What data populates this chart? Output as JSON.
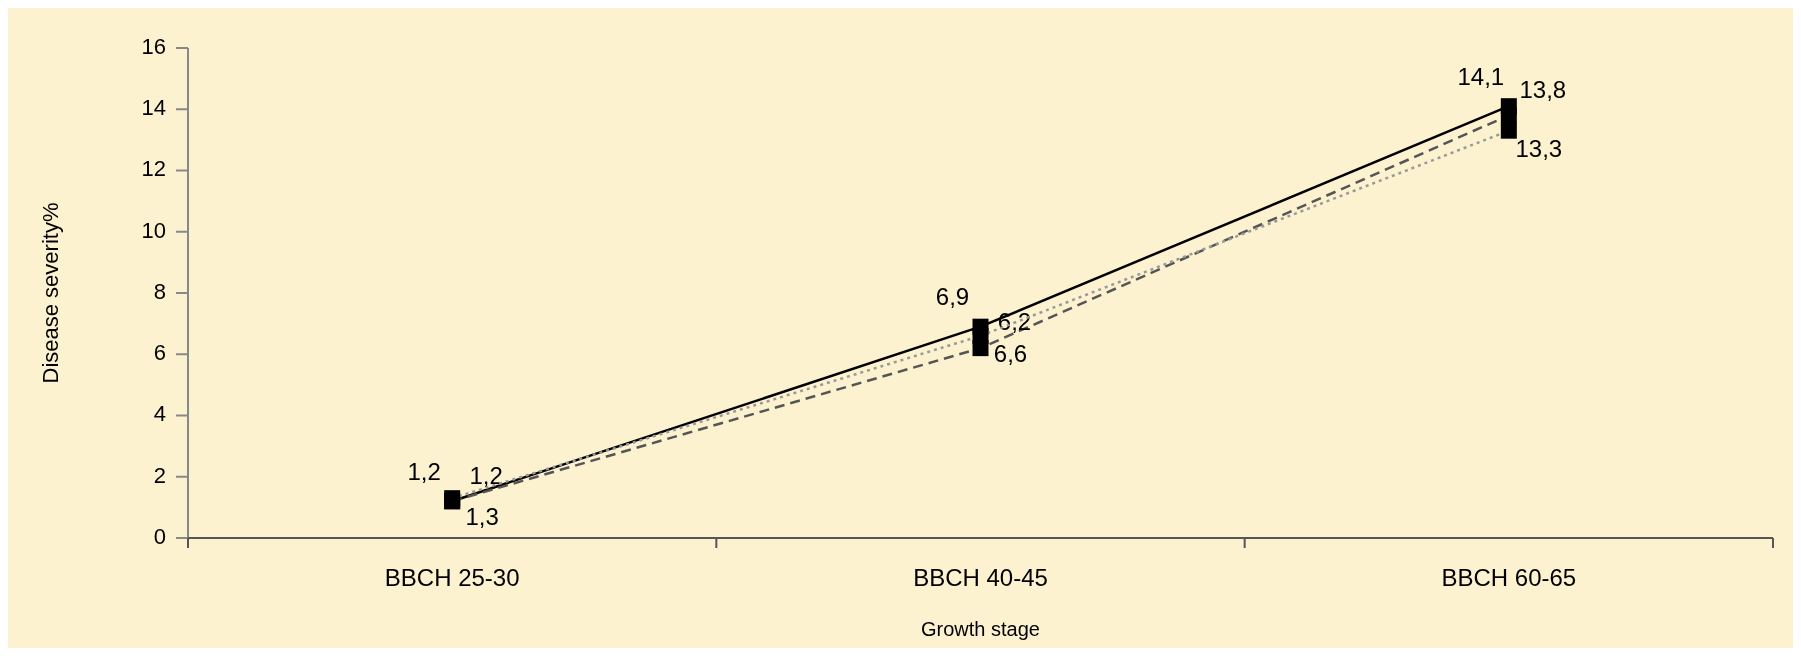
{
  "chart_data": {
    "type": "line",
    "xlabel": "Growth stage",
    "ylabel": "Disease severity%",
    "categories": [
      "BBCH 25-30",
      "BBCH 40-45",
      "BBCH 60-65"
    ],
    "ylim": [
      0,
      16
    ],
    "yticks": [
      0,
      2,
      4,
      6,
      8,
      10,
      12,
      14,
      16
    ],
    "grid": false,
    "marker": "square",
    "series": [
      {
        "color": "#000000",
        "line_style": "solid",
        "values": [
          1.2,
          6.9,
          14.1
        ],
        "value_labels": [
          "1,2",
          "6,9",
          "14,1"
        ]
      },
      {
        "color": "#555555",
        "line_style": "dashed",
        "values": [
          1.2,
          6.2,
          13.8
        ],
        "value_labels": [
          "1,2",
          "6,2",
          "13,8"
        ]
      },
      {
        "color": "#999999",
        "line_style": "dotted",
        "values": [
          1.3,
          6.6,
          13.3
        ],
        "value_labels": [
          "1,3",
          "6,6",
          "13,3"
        ]
      }
    ]
  }
}
